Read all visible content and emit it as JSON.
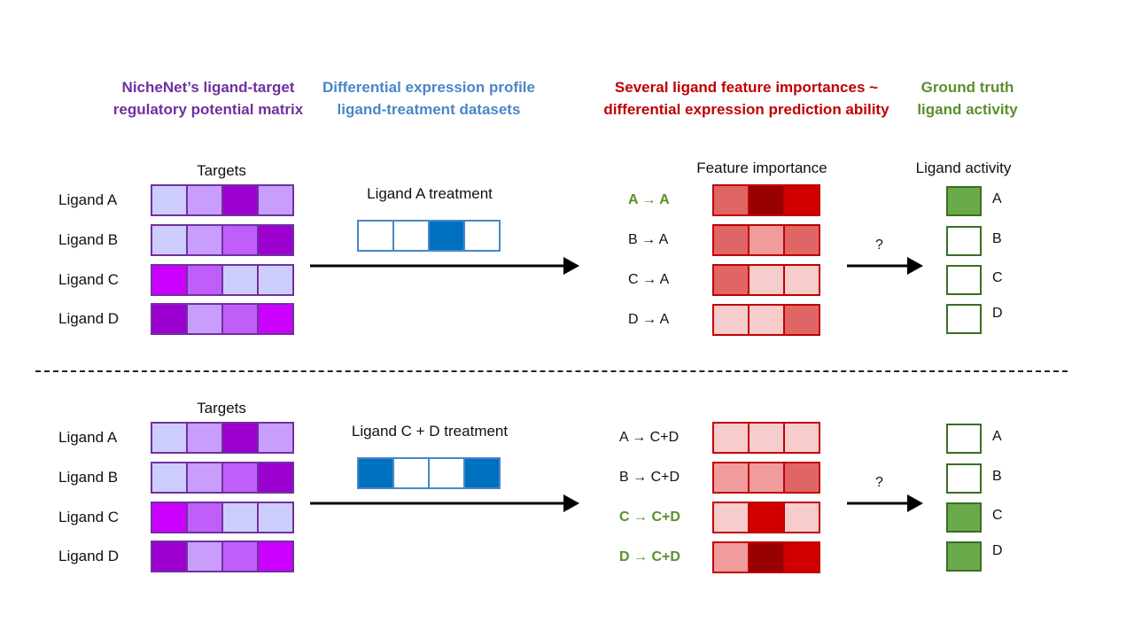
{
  "headers": {
    "matrix": [
      "NicheNet’s ligand-target",
      "regulatory potential matrix"
    ],
    "expression": [
      "Differential expression profile",
      "ligand-treatment datasets"
    ],
    "importance": [
      "Several ligand feature importances ~",
      "differential expression prediction ability"
    ],
    "truth": [
      "Ground truth",
      "ligand activity"
    ]
  },
  "colors": {
    "matrix_header": "#7030a0",
    "expression_header": "#4a86c8",
    "importance_header": "#c00000",
    "truth_header": "#5b8f2c",
    "ligand_border": "#7030a0",
    "expression_border": "#4a86c8",
    "importance_border": "#c00000",
    "active_fill": "#6aaa4a"
  },
  "panels": [
    {
      "targets_label": "Targets",
      "ligands": [
        {
          "label": "Ligand A",
          "cells": [
            "#cdcdfd",
            "#c89dfc",
            "#9b00d0",
            "#c89dfc"
          ]
        },
        {
          "label": "Ligand B",
          "cells": [
            "#cdcdfd",
            "#c89dfc",
            "#c05efa",
            "#9b00d0"
          ]
        },
        {
          "label": "Ligand C",
          "cells": [
            "#cc00ff",
            "#c05efa",
            "#cdcdfd",
            "#cdcdfd"
          ]
        },
        {
          "label": "Ligand D",
          "cells": [
            "#9b00d0",
            "#c89dfc",
            "#c05efa",
            "#cc00ff"
          ]
        }
      ],
      "treatment_label": "Ligand A treatment",
      "treatment_cells": [
        "#ffffff",
        "#ffffff",
        "#0070c0",
        "#ffffff"
      ],
      "feature_title": "Feature importance",
      "features": [
        {
          "label": "A →  A",
          "highlight": true,
          "cells": [
            "#e06666",
            "#990000",
            "#d00000"
          ]
        },
        {
          "label": "B →  A",
          "highlight": false,
          "cells": [
            "#e06666",
            "#f09c9c",
            "#e06666"
          ]
        },
        {
          "label": "C →  A",
          "highlight": false,
          "cells": [
            "#e06666",
            "#f6cccc",
            "#f6cccc"
          ]
        },
        {
          "label": "D →  A",
          "highlight": false,
          "cells": [
            "#f6cccc",
            "#f6cccc",
            "#e06666"
          ]
        }
      ],
      "question": "?",
      "activity_title": "Ligand activity",
      "activity": [
        {
          "label": "A",
          "active": true
        },
        {
          "label": "B",
          "active": false
        },
        {
          "label": "C",
          "active": false
        },
        {
          "label": "D",
          "active": false
        }
      ]
    },
    {
      "targets_label": "Targets",
      "ligands": [
        {
          "label": "Ligand A",
          "cells": [
            "#cdcdfd",
            "#c89dfc",
            "#9b00d0",
            "#c89dfc"
          ]
        },
        {
          "label": "Ligand B",
          "cells": [
            "#cdcdfd",
            "#c89dfc",
            "#c05efa",
            "#9b00d0"
          ]
        },
        {
          "label": "Ligand C",
          "cells": [
            "#cc00ff",
            "#c05efa",
            "#cdcdfd",
            "#cdcdfd"
          ]
        },
        {
          "label": "Ligand D",
          "cells": [
            "#9b00d0",
            "#c89dfc",
            "#c05efa",
            "#cc00ff"
          ]
        }
      ],
      "treatment_label": "Ligand C + D treatment",
      "treatment_cells": [
        "#0070c0",
        "#ffffff",
        "#ffffff",
        "#0070c0"
      ],
      "feature_title": "",
      "features": [
        {
          "label": "A →  C+D",
          "highlight": false,
          "cells": [
            "#f6cccc",
            "#f6cccc",
            "#f6cccc"
          ]
        },
        {
          "label": "B →  C+D",
          "highlight": false,
          "cells": [
            "#f09c9c",
            "#f09c9c",
            "#e06666"
          ]
        },
        {
          "label": "C →  C+D",
          "highlight": true,
          "cells": [
            "#f6cccc",
            "#d00000",
            "#f6cccc"
          ]
        },
        {
          "label": "D →  C+D",
          "highlight": true,
          "cells": [
            "#f09c9c",
            "#990000",
            "#d00000"
          ]
        }
      ],
      "question": "?",
      "activity_title": "",
      "activity": [
        {
          "label": "A",
          "active": false
        },
        {
          "label": "B",
          "active": false
        },
        {
          "label": "C",
          "active": true
        },
        {
          "label": "D",
          "active": true
        }
      ]
    }
  ]
}
